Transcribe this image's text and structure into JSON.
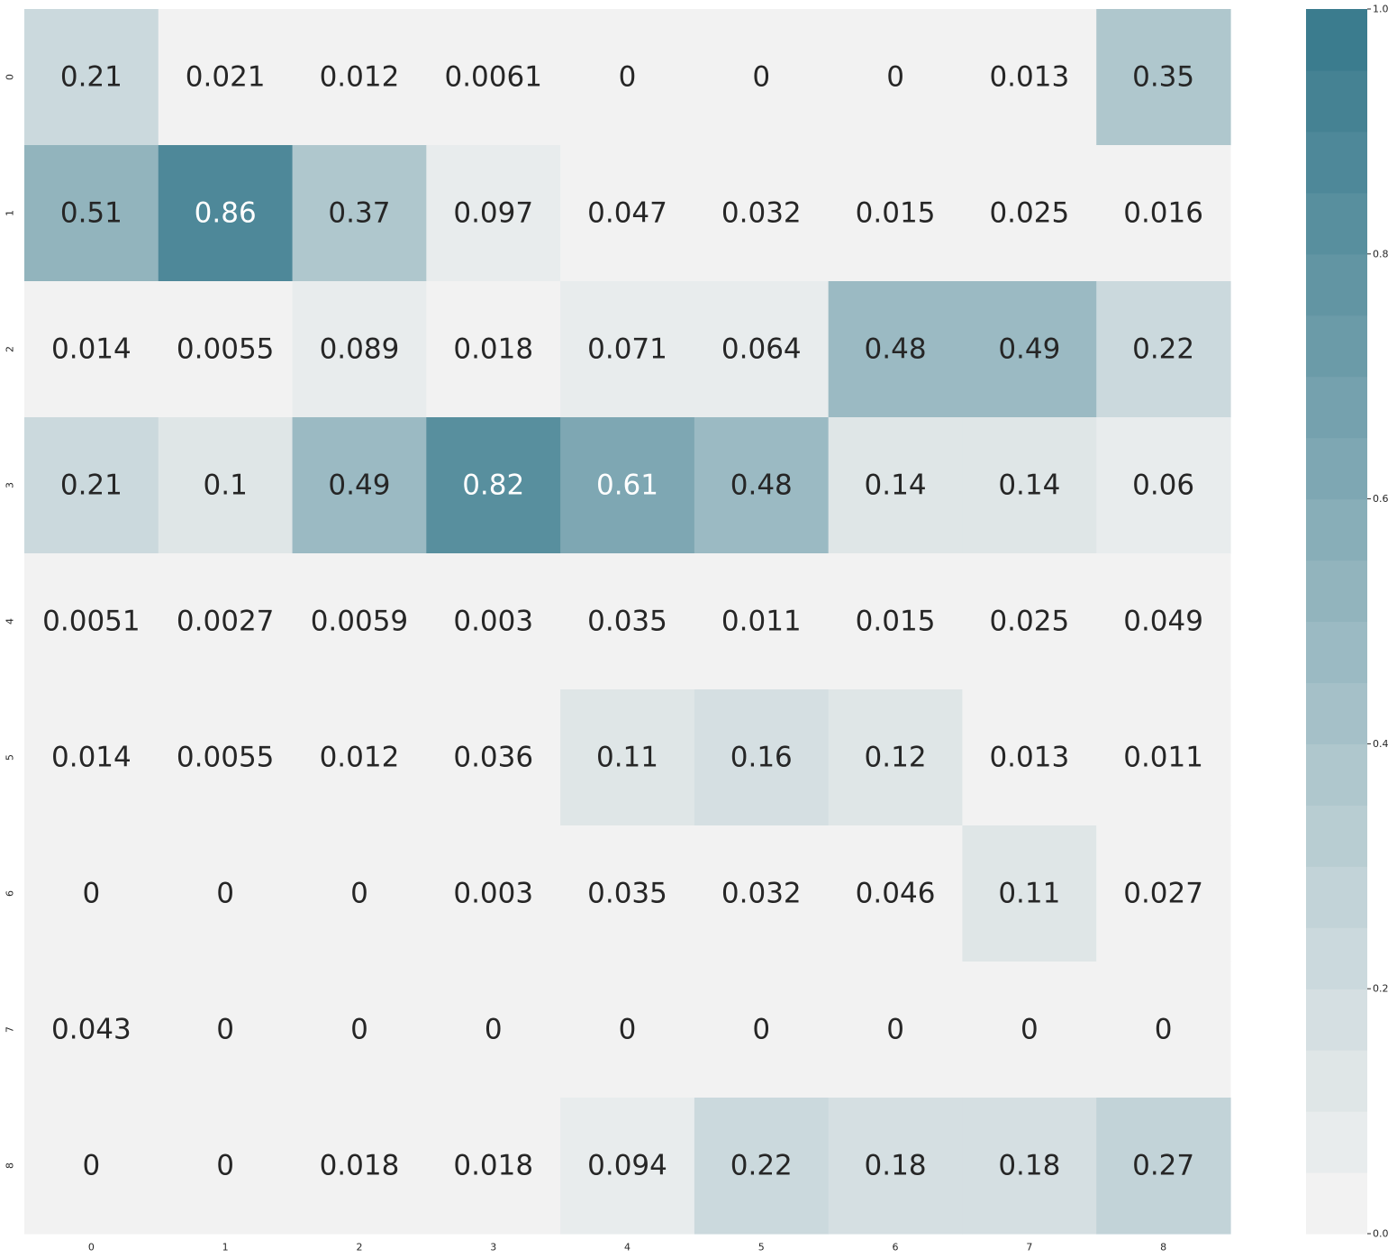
{
  "chart_data": {
    "type": "heatmap",
    "title": "",
    "xlabel": "",
    "ylabel": "",
    "x_ticks": [
      "0",
      "1",
      "2",
      "3",
      "4",
      "5",
      "6",
      "7",
      "8"
    ],
    "y_ticks": [
      "0",
      "1",
      "2",
      "3",
      "4",
      "5",
      "6",
      "7",
      "8"
    ],
    "cell_labels": [
      [
        "0.21",
        "0.021",
        "0.012",
        "0.0061",
        "0",
        "0",
        "0",
        "0.013",
        "0.35"
      ],
      [
        "0.51",
        "0.86",
        "0.37",
        "0.097",
        "0.047",
        "0.032",
        "0.015",
        "0.025",
        "0.016"
      ],
      [
        "0.014",
        "0.0055",
        "0.089",
        "0.018",
        "0.071",
        "0.064",
        "0.48",
        "0.49",
        "0.22"
      ],
      [
        "0.21",
        "0.1",
        "0.49",
        "0.82",
        "0.61",
        "0.48",
        "0.14",
        "0.14",
        "0.06"
      ],
      [
        "0.0051",
        "0.0027",
        "0.0059",
        "0.003",
        "0.035",
        "0.011",
        "0.015",
        "0.025",
        "0.049"
      ],
      [
        "0.014",
        "0.0055",
        "0.012",
        "0.036",
        "0.11",
        "0.16",
        "0.12",
        "0.013",
        "0.011"
      ],
      [
        "0",
        "0",
        "0",
        "0.003",
        "0.035",
        "0.032",
        "0.046",
        "0.11",
        "0.027"
      ],
      [
        "0.043",
        "0",
        "0",
        "0",
        "0",
        "0",
        "0",
        "0",
        "0"
      ],
      [
        "0",
        "0",
        "0.018",
        "0.018",
        "0.094",
        "0.22",
        "0.18",
        "0.18",
        "0.27"
      ]
    ],
    "values": [
      [
        0.21,
        0.021,
        0.012,
        0.0061,
        0,
        0,
        0,
        0.013,
        0.35
      ],
      [
        0.51,
        0.86,
        0.37,
        0.097,
        0.047,
        0.032,
        0.015,
        0.025,
        0.016
      ],
      [
        0.014,
        0.0055,
        0.089,
        0.018,
        0.071,
        0.064,
        0.48,
        0.49,
        0.22
      ],
      [
        0.21,
        0.1,
        0.49,
        0.82,
        0.61,
        0.48,
        0.14,
        0.14,
        0.06
      ],
      [
        0.0051,
        0.0027,
        0.0059,
        0.003,
        0.035,
        0.011,
        0.015,
        0.025,
        0.049
      ],
      [
        0.014,
        0.0055,
        0.012,
        0.036,
        0.11,
        0.16,
        0.12,
        0.013,
        0.011
      ],
      [
        0,
        0,
        0,
        0.003,
        0.035,
        0.032,
        0.046,
        0.11,
        0.027
      ],
      [
        0.043,
        0,
        0,
        0,
        0,
        0,
        0,
        0,
        0
      ],
      [
        0,
        0,
        0.018,
        0.018,
        0.094,
        0.22,
        0.18,
        0.18,
        0.27
      ]
    ],
    "vmin": 0,
    "vmax": 1,
    "colormap": {
      "low": "#f2f2f2",
      "high": "#3b7c8e",
      "steps": 20
    },
    "colorbar": {
      "ticks": [
        "0.0",
        "0.2",
        "0.4",
        "0.6",
        "0.8",
        "1.0"
      ],
      "tick_values": [
        0,
        0.2,
        0.4,
        0.6,
        0.8,
        1.0
      ]
    },
    "text_colors": {
      "dark": "#262626",
      "light": "#ffffff"
    },
    "grid": false,
    "legend": "colorbar-right"
  }
}
